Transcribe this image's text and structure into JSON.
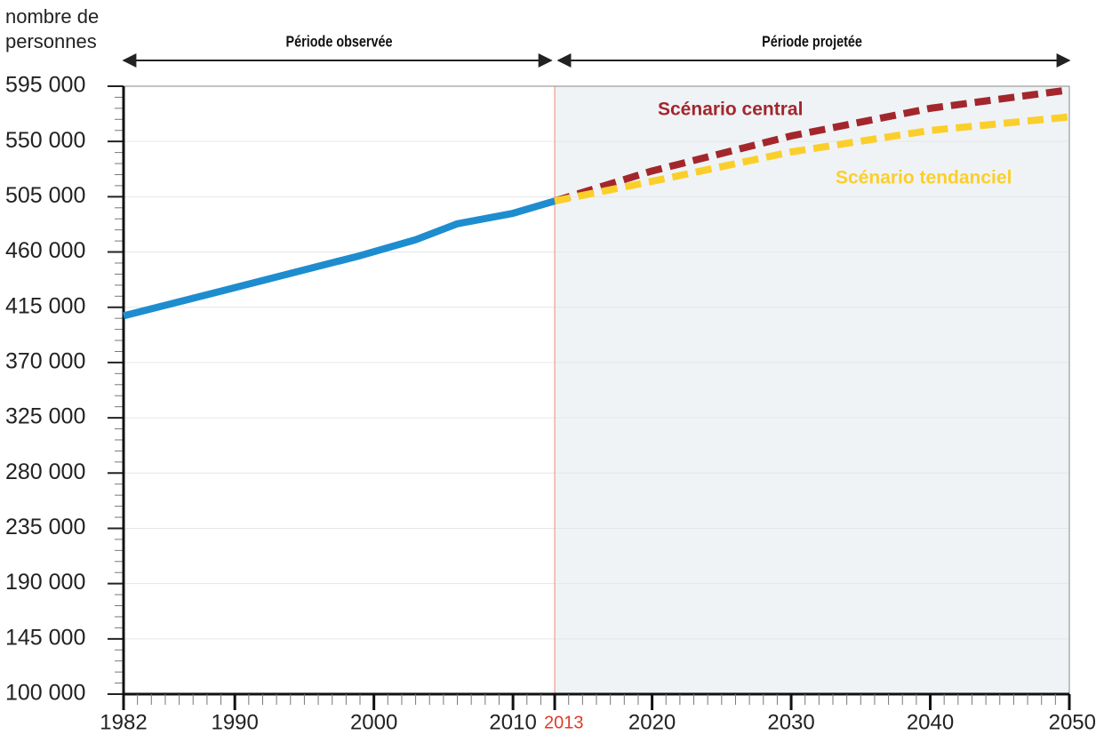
{
  "chart_data": {
    "type": "line",
    "y_label": [
      "nombre de",
      "personnes"
    ],
    "periods": [
      "Période observée",
      "Période projetée"
    ],
    "xlim": [
      1982,
      2050
    ],
    "xticks": [
      1982,
      1990,
      2000,
      2010,
      2013,
      2020,
      2030,
      2040,
      2050
    ],
    "ylim": [
      100000,
      595000
    ],
    "yticks": [
      {
        "value": 100000,
        "label": "100 000"
      },
      {
        "value": 145000,
        "label": "145 000"
      },
      {
        "value": 190000,
        "label": "190 000"
      },
      {
        "value": 235000,
        "label": "235 000"
      },
      {
        "value": 280000,
        "label": "280 000"
      },
      {
        "value": 325000,
        "label": "325 000"
      },
      {
        "value": 370000,
        "label": "370 000"
      },
      {
        "value": 415000,
        "label": "415 000"
      },
      {
        "value": 460000,
        "label": "460 000"
      },
      {
        "value": 505000,
        "label": "505 000"
      },
      {
        "value": 550000,
        "label": "550 000"
      },
      {
        "value": 595000,
        "label": "595 000"
      }
    ],
    "grid": true,
    "series": [
      {
        "color": "#1e8dcf",
        "dashed": false,
        "x": [
          1982,
          1990,
          1999,
          2003,
          2006,
          2010,
          2013
        ],
        "values": [
          408000,
          431000,
          457000,
          470000,
          483000,
          491500,
          501500
        ]
      },
      {
        "name": "Scénario central",
        "color": "#a3262d",
        "dashed": true,
        "x": [
          2013,
          2020,
          2030,
          2040,
          2050
        ],
        "values": [
          501500,
          526000,
          554500,
          577000,
          592000
        ]
      },
      {
        "name": "Scénario tendanciel",
        "color": "#fbcf2b",
        "dashed": true,
        "x": [
          2013,
          2020,
          2030,
          2040,
          2050
        ],
        "values": [
          501500,
          517500,
          541500,
          559000,
          570000
        ]
      }
    ]
  }
}
